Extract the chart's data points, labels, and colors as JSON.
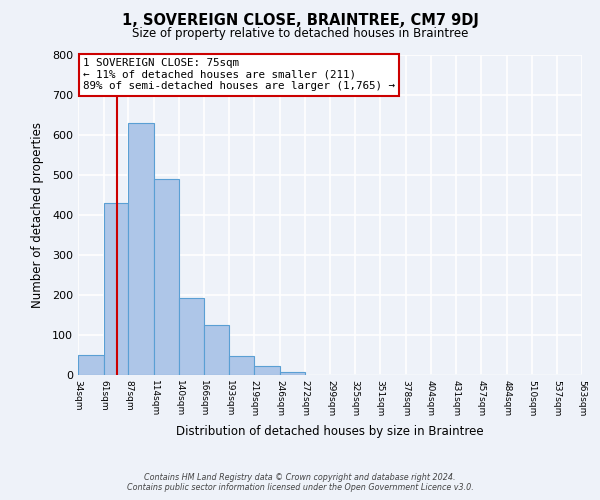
{
  "title": "1, SOVEREIGN CLOSE, BRAINTREE, CM7 9DJ",
  "subtitle": "Size of property relative to detached houses in Braintree",
  "xlabel": "Distribution of detached houses by size in Braintree",
  "ylabel": "Number of detached properties",
  "bin_edges": [
    34,
    61,
    87,
    114,
    140,
    166,
    193,
    219,
    246,
    272,
    299,
    325,
    351,
    378,
    404,
    431,
    457,
    484,
    510,
    537,
    563
  ],
  "bar_heights": [
    50,
    430,
    630,
    490,
    193,
    125,
    48,
    22,
    8,
    0,
    0,
    0,
    0,
    0,
    0,
    0,
    0,
    0,
    0,
    0
  ],
  "bar_color": "#aec6e8",
  "bar_edge_color": "#5a9fd4",
  "property_line_x": 75,
  "property_line_color": "#cc0000",
  "ylim": [
    0,
    800
  ],
  "annotation_text": "1 SOVEREIGN CLOSE: 75sqm\n← 11% of detached houses are smaller (211)\n89% of semi-detached houses are larger (1,765) →",
  "annotation_box_color": "#ffffff",
  "annotation_box_edge": "#cc0000",
  "tick_labels": [
    "34sqm",
    "61sqm",
    "87sqm",
    "114sqm",
    "140sqm",
    "166sqm",
    "193sqm",
    "219sqm",
    "246sqm",
    "272sqm",
    "299sqm",
    "325sqm",
    "351sqm",
    "378sqm",
    "404sqm",
    "431sqm",
    "457sqm",
    "484sqm",
    "510sqm",
    "537sqm",
    "563sqm"
  ],
  "footer_line1": "Contains HM Land Registry data © Crown copyright and database right 2024.",
  "footer_line2": "Contains public sector information licensed under the Open Government Licence v3.0.",
  "background_color": "#eef2f9",
  "grid_color": "#ffffff",
  "yticks": [
    0,
    100,
    200,
    300,
    400,
    500,
    600,
    700,
    800
  ]
}
